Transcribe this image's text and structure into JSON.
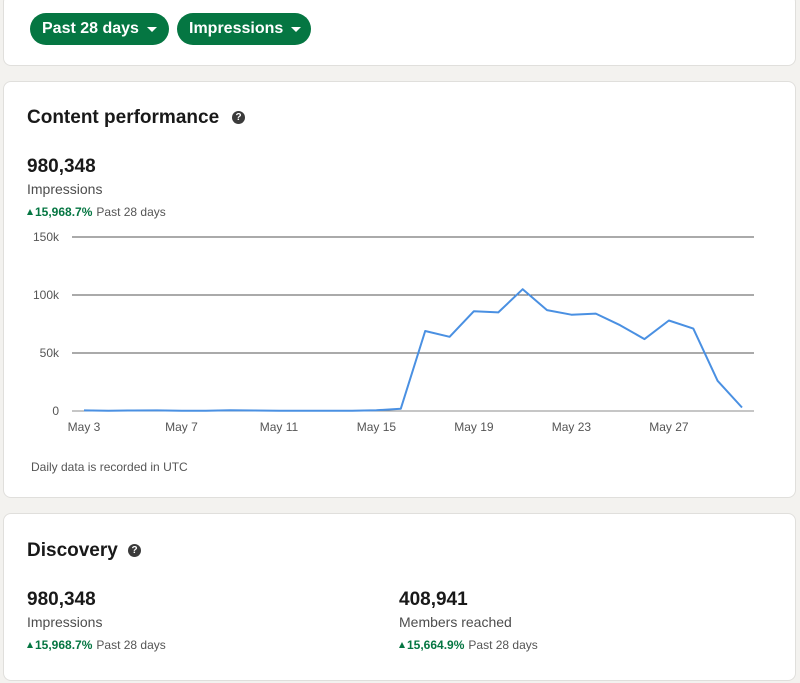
{
  "filters": {
    "range_label": "Past 28 days",
    "metric_label": "Impressions"
  },
  "content_performance": {
    "title": "Content performance",
    "help_glyph": "?",
    "total": "980,348",
    "label": "Impressions",
    "change_pct": "15,968.7%",
    "change_period": "Past 28 days",
    "footnote": "Daily data is recorded in UTC"
  },
  "chart_data": {
    "type": "line",
    "title": "",
    "xlabel": "",
    "ylabel": "",
    "ylim": [
      0,
      150000
    ],
    "y_ticks": [
      0,
      50000,
      100000,
      150000
    ],
    "y_tick_labels": [
      "0",
      "50k",
      "100k",
      "150k"
    ],
    "x_tick_labels": [
      "May 3",
      "May 7",
      "May 11",
      "May 15",
      "May 19",
      "May 23",
      "May 27"
    ],
    "grid": true,
    "color": "#4a90e2",
    "series": [
      {
        "x": [
          "May 3",
          "May 4",
          "May 5",
          "May 6",
          "May 7",
          "May 8",
          "May 9",
          "May 10",
          "May 11",
          "May 12",
          "May 13",
          "May 14",
          "May 15",
          "May 16",
          "May 17",
          "May 18",
          "May 19",
          "May 20",
          "May 21",
          "May 22",
          "May 23",
          "May 24",
          "May 25",
          "May 26",
          "May 27",
          "May 28",
          "May 29",
          "May 30"
        ],
        "values": [
          500,
          300,
          400,
          500,
          300,
          300,
          600,
          400,
          300,
          300,
          300,
          300,
          600,
          2000,
          69000,
          64000,
          86000,
          85000,
          105000,
          87000,
          83000,
          84000,
          74000,
          62000,
          78000,
          71000,
          26000,
          3000
        ]
      }
    ]
  },
  "discovery": {
    "title": "Discovery",
    "help_glyph": "?",
    "impressions": {
      "value": "980,348",
      "label": "Impressions",
      "change_pct": "15,968.7%",
      "change_period": "Past 28 days"
    },
    "members": {
      "value": "408,941",
      "label": "Members reached",
      "change_pct": "15,664.9%",
      "change_period": "Past 28 days"
    }
  }
}
